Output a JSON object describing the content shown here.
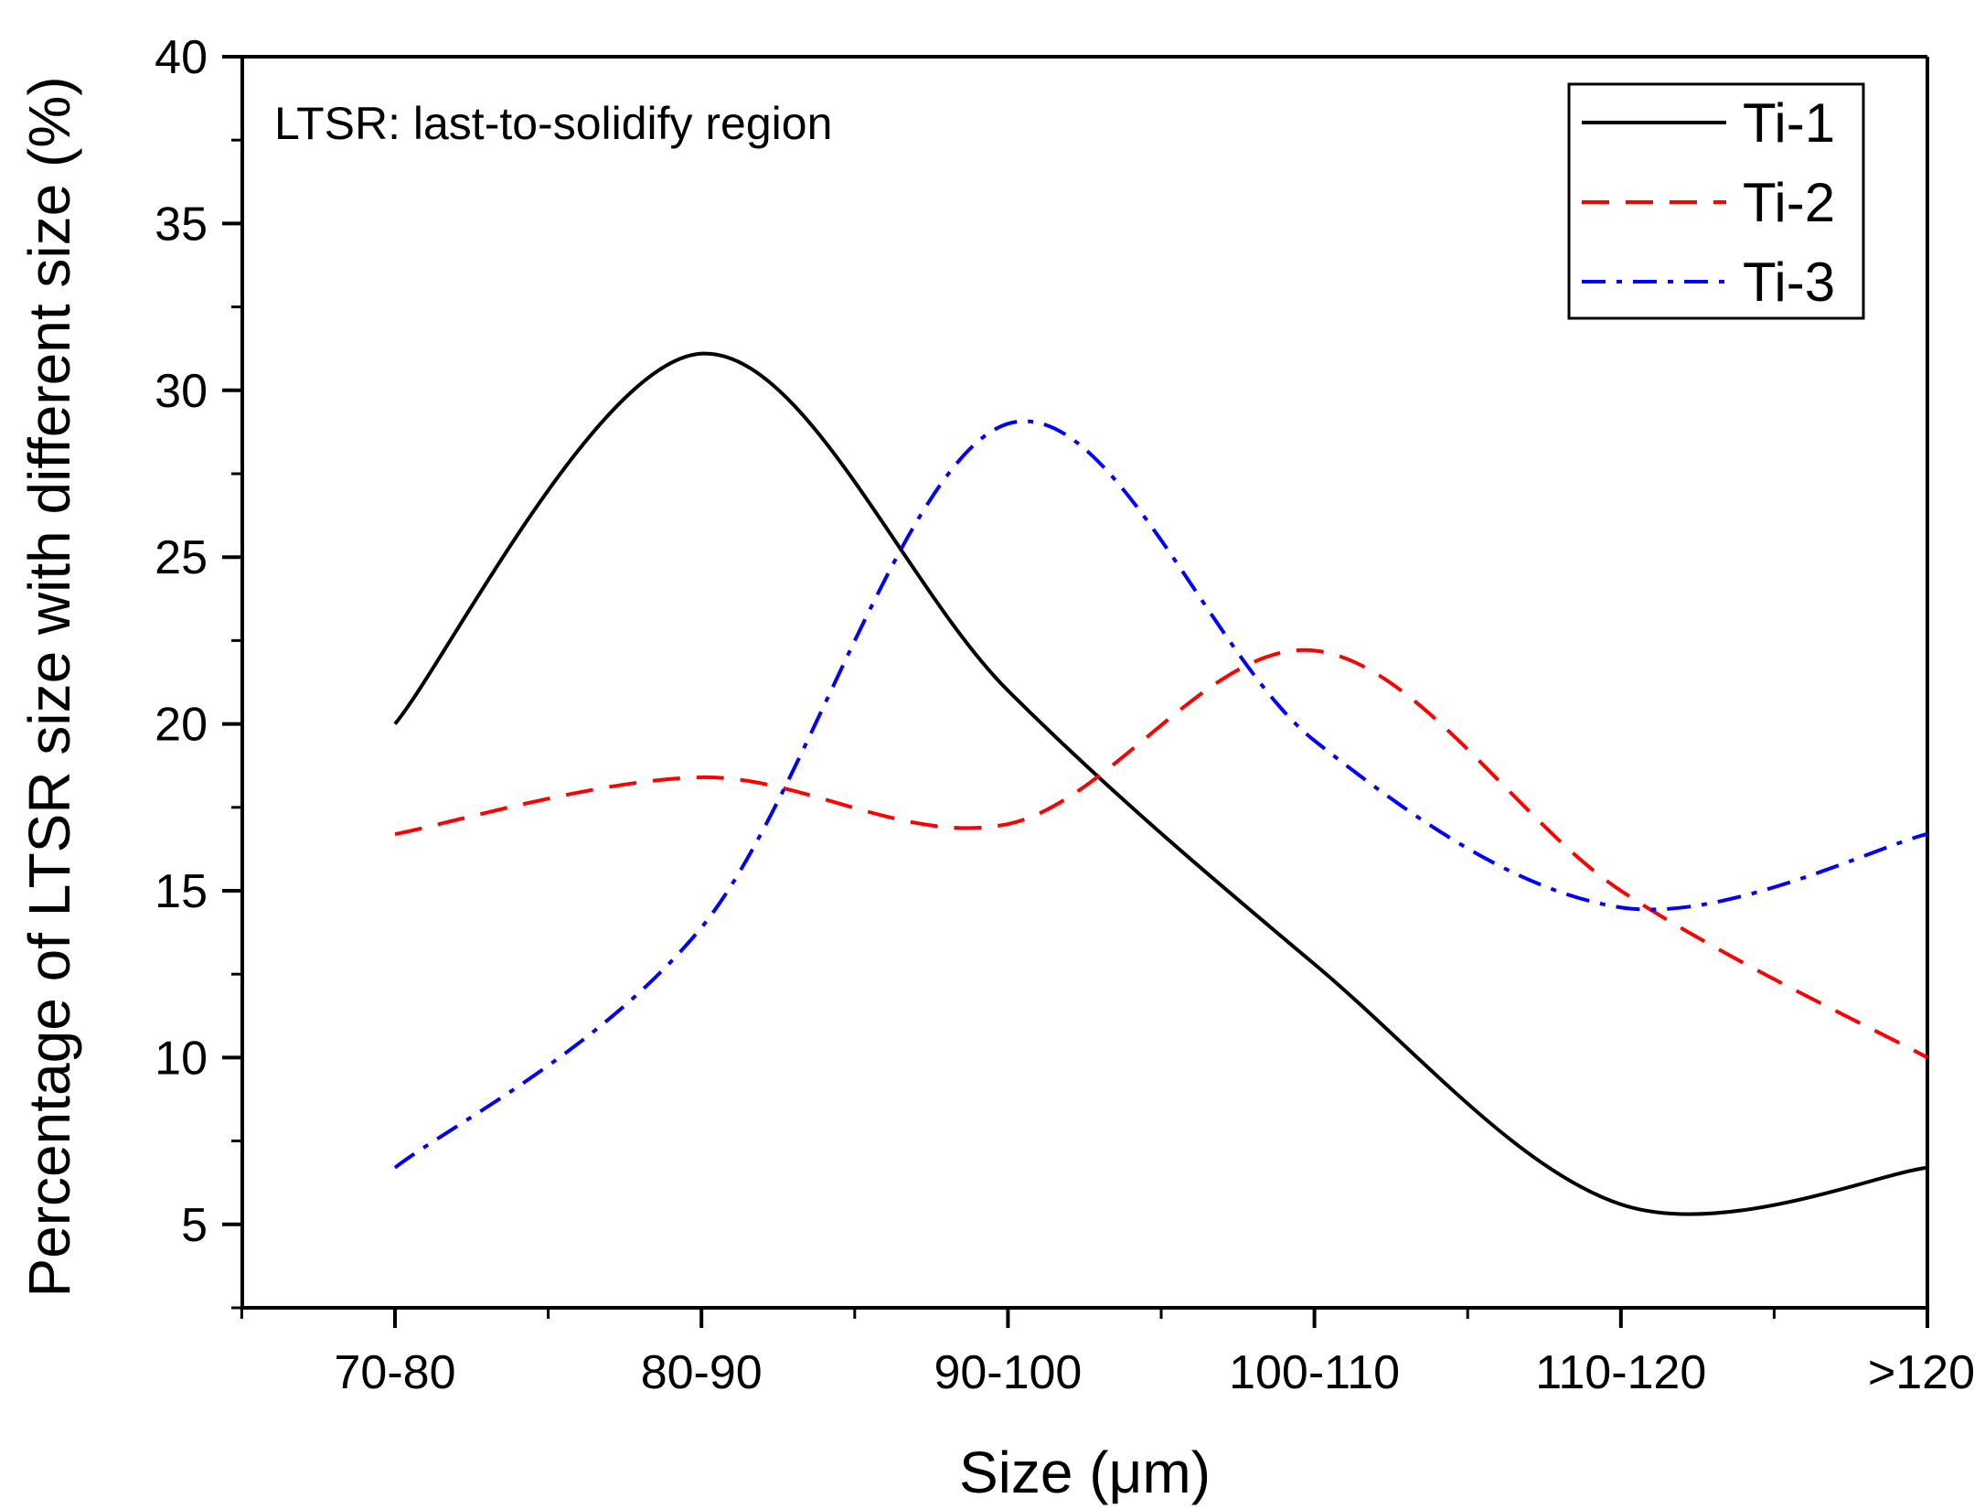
{
  "chart_data": {
    "type": "line",
    "title": "",
    "xlabel": "Size (μm)",
    "ylabel": "Percentage of LTSR size with different size (%)",
    "annotation": "LTSR: last-to-solidify region",
    "categories": [
      "70-80",
      "80-90",
      "90-100",
      "100-110",
      "110-120",
      ">120"
    ],
    "ylim": [
      2.5,
      40
    ],
    "yticks": [
      5,
      10,
      15,
      20,
      25,
      30,
      35,
      40
    ],
    "legend_position": "top-right",
    "smooth": true,
    "series": [
      {
        "name": "Ti-1",
        "values": [
          20.0,
          31.1,
          21.0,
          12.8,
          5.6,
          6.7
        ],
        "color": "#000000",
        "dash": "solid"
      },
      {
        "name": "Ti-2",
        "values": [
          16.7,
          18.4,
          17.0,
          22.2,
          15.0,
          10.0
        ],
        "color": "#ff0000",
        "dash": "dash"
      },
      {
        "name": "Ti-3",
        "values": [
          6.7,
          13.9,
          29.0,
          19.5,
          14.5,
          16.7
        ],
        "color": "#0000ff",
        "dash": "dashdot"
      }
    ]
  }
}
